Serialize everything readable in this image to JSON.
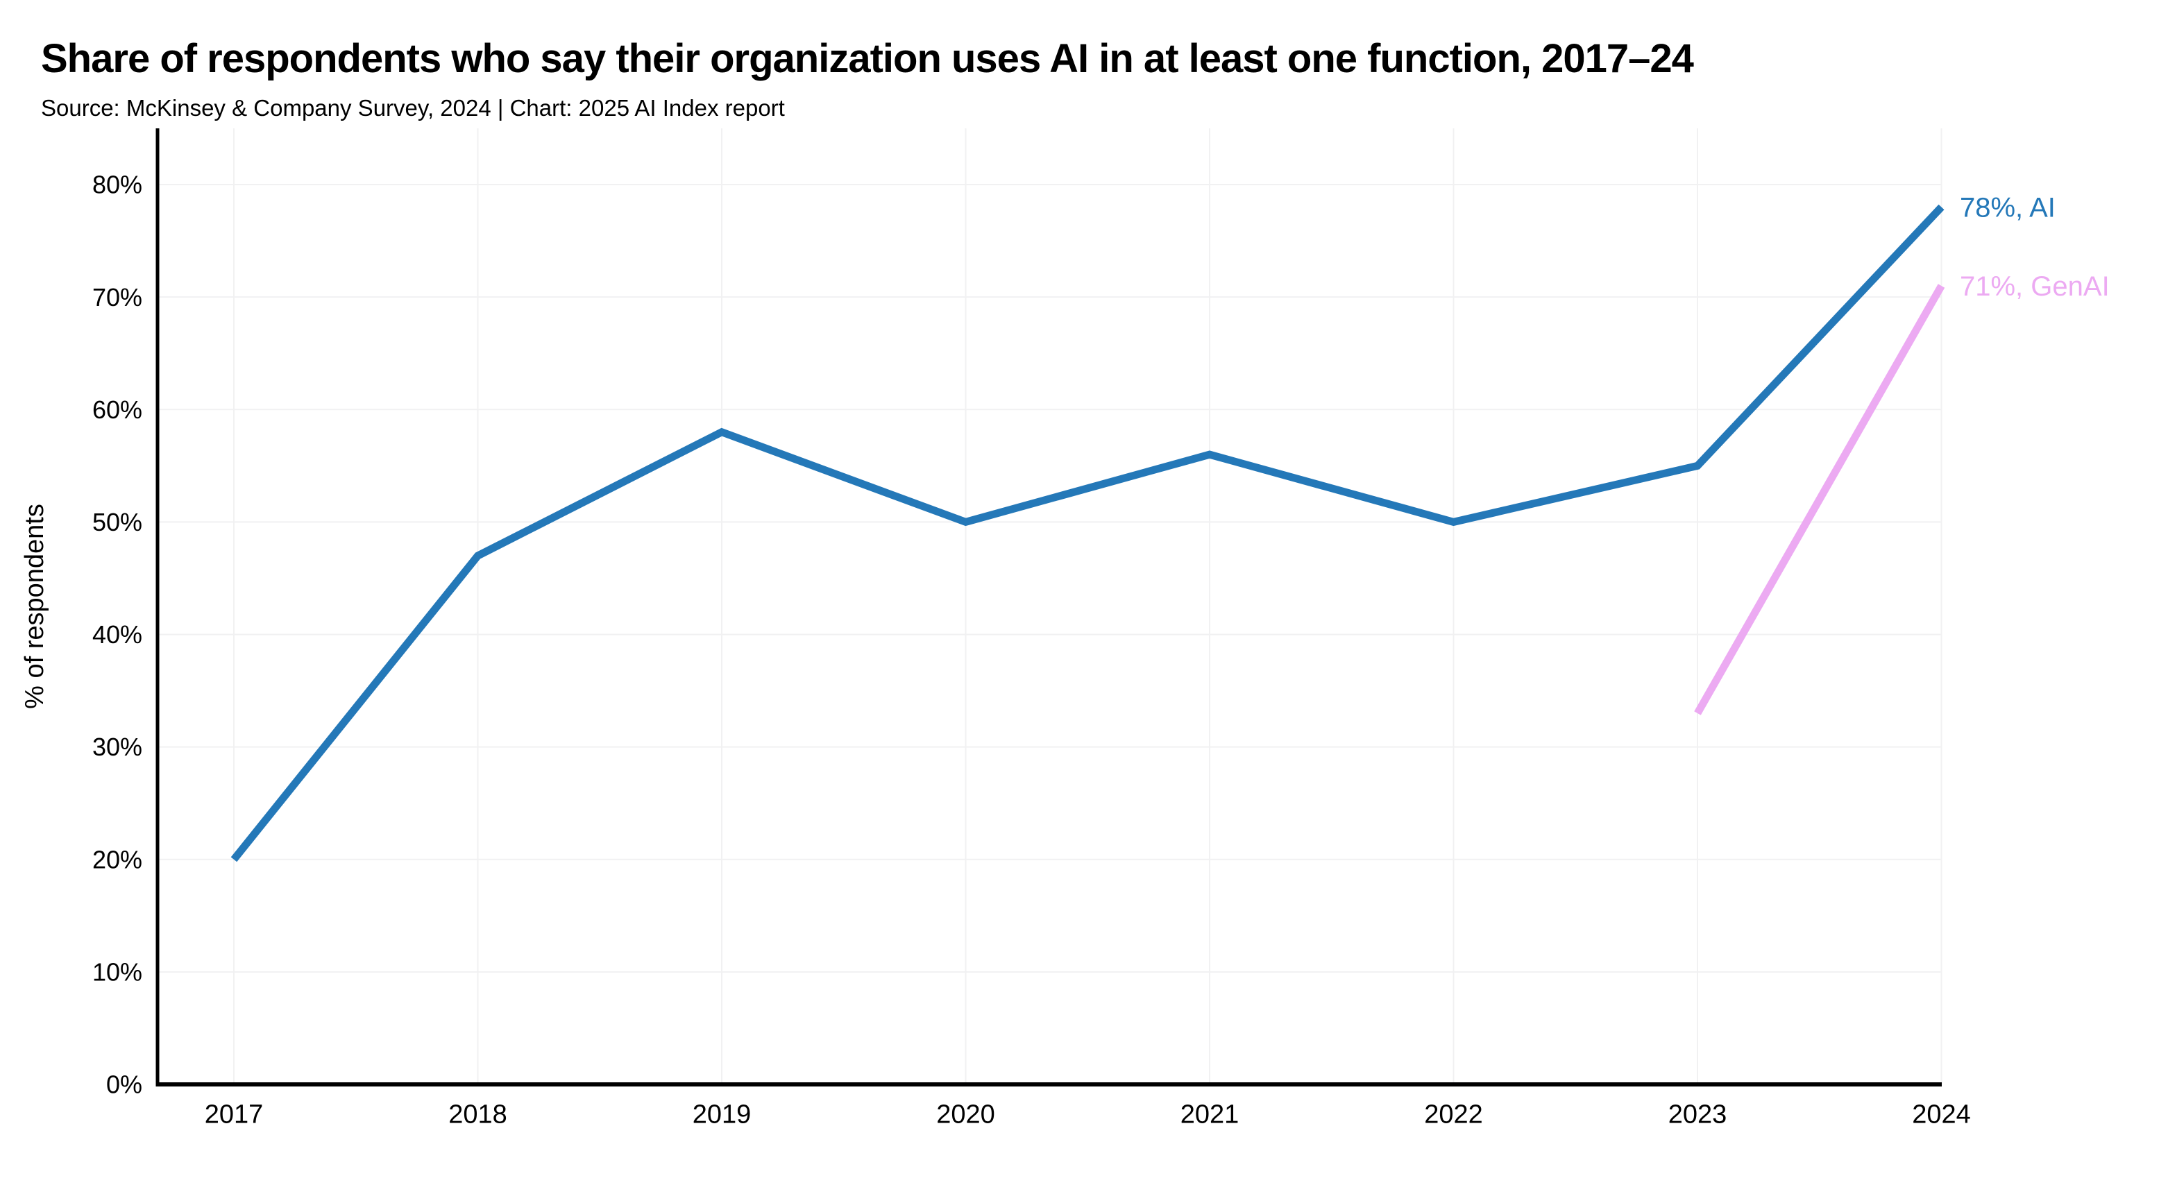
{
  "header": {
    "title": "Share of respondents who say their organization uses AI in at least one function, 2017–24",
    "source": "Source: McKinsey & Company Survey, 2024 | Chart: 2025 AI Index report"
  },
  "chart_data": {
    "type": "line",
    "title": "Share of respondents who say their organization uses AI in at least one function, 2017–24",
    "x": [
      2017,
      2018,
      2019,
      2020,
      2021,
      2022,
      2023,
      2024
    ],
    "series": [
      {
        "name": "AI",
        "color": "#2478b8",
        "x": [
          2017,
          2018,
          2019,
          2020,
          2021,
          2022,
          2023,
          2024
        ],
        "values": [
          20,
          47,
          58,
          50,
          56,
          50,
          55,
          78
        ],
        "end_label": "78%, AI"
      },
      {
        "name": "GenAI",
        "color": "#ecaaf2",
        "x": [
          2023,
          2024
        ],
        "values": [
          33,
          71
        ],
        "end_label": "71%, GenAI"
      }
    ],
    "xlabel": "",
    "ylabel": "% of respondents",
    "ylim": [
      0,
      85
    ],
    "yticks": [
      0,
      10,
      20,
      30,
      40,
      50,
      60,
      70,
      80
    ],
    "ytick_labels": [
      "0%",
      "10%",
      "20%",
      "30%",
      "40%",
      "50%",
      "60%",
      "70%",
      "80%"
    ],
    "xtick_labels": [
      "2017",
      "2018",
      "2019",
      "2020",
      "2021",
      "2022",
      "2023",
      "2024"
    ],
    "grid": true,
    "legend_position": "end-of-line-labels",
    "colors": {
      "grid": "#f1f1f2",
      "axis": "#000000",
      "text": "#000000"
    }
  }
}
